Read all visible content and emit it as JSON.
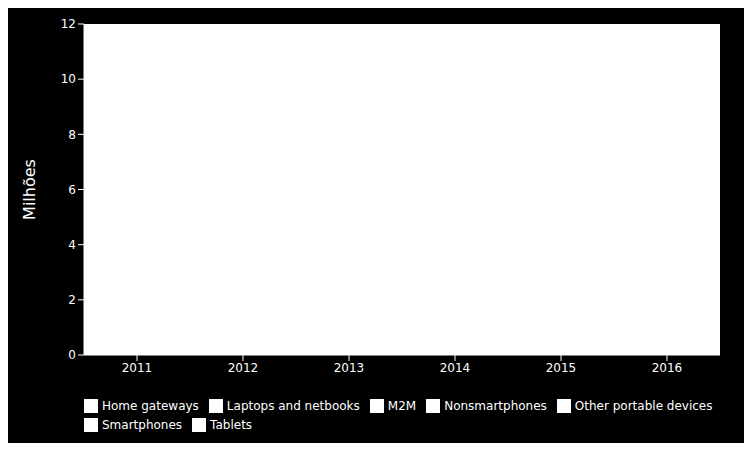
{
  "chart_data": {
    "type": "bar",
    "ylabel": "Milhões",
    "xlim": [
      2010.5,
      2016.5
    ],
    "xticks": [
      2011,
      2012,
      2013,
      2014,
      2015,
      2016
    ],
    "ylim": [
      0,
      12
    ],
    "yticks": [
      0,
      2,
      4,
      6,
      8,
      10,
      12
    ],
    "grid": false,
    "legend": "bottom",
    "series": [
      {
        "name": "Nonsmartphones",
        "color": "#ffffff"
      },
      {
        "name": "Smartphones",
        "color": "#ffffff"
      },
      {
        "name": "Laptops and netbooks",
        "color": "#ffffff"
      },
      {
        "name": "Tablets",
        "color": "#ffffff"
      },
      {
        "name": "Home gateways",
        "color": "#ffffff"
      },
      {
        "name": "M2M",
        "color": "#ffffff"
      },
      {
        "name": "Other portable devices",
        "color": "#ffffff"
      }
    ]
  }
}
